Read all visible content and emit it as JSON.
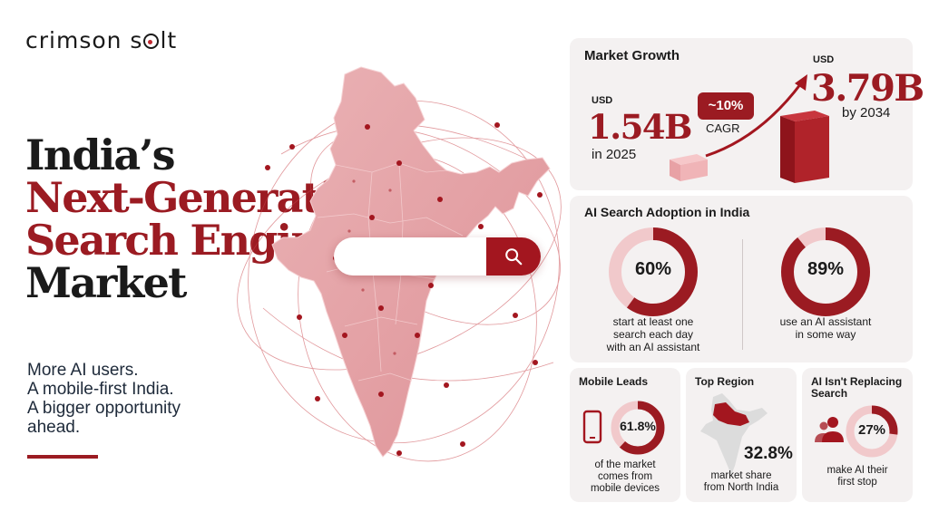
{
  "brand": {
    "logo_part1": "crimson s",
    "logo_part2": "lt"
  },
  "headline": {
    "line1": "India’s",
    "line2": "Next-Generation",
    "line3": "Search Engine",
    "line4": "Market"
  },
  "tagline": [
    "More AI users.",
    "A mobile-first India.",
    "A bigger opportunity",
    "ahead."
  ],
  "colors": {
    "crimson": "#9b1b22",
    "pink_map": "#e7a6aa",
    "panel_bg": "#f4f1f1"
  },
  "search_bar": {
    "icon": "search-icon"
  },
  "market_growth": {
    "title": "Market Growth",
    "start": {
      "currency": "USD",
      "value": "1.54B",
      "year_label": "in 2025"
    },
    "end": {
      "currency": "USD",
      "value": "3.79B",
      "year_label": "by 2034"
    },
    "cagr_value": "~10%",
    "cagr_label": "CAGR"
  },
  "adoption": {
    "title": "AI Search Adoption in India",
    "stats": [
      {
        "value": "60%",
        "fraction": 0.6,
        "caption": [
          "start at least one",
          "search each day",
          "with an AI assistant"
        ]
      },
      {
        "value": "89%",
        "fraction": 0.89,
        "caption": [
          "use an AI assistant",
          "in some way"
        ]
      }
    ]
  },
  "mobile": {
    "title": "Mobile Leads",
    "value": "61.8%",
    "fraction": 0.618,
    "caption": [
      "of the market",
      "comes from",
      "mobile devices"
    ],
    "icon": "phone-icon"
  },
  "region": {
    "title": "Top Region",
    "value": "32.8%",
    "caption": [
      "market share",
      "from North India"
    ],
    "icon": "india-map-icon"
  },
  "not_replacing": {
    "title": [
      "AI Isn't Replacing",
      "Search"
    ],
    "value": "27%",
    "fraction": 0.27,
    "caption": [
      "make AI their",
      "first stop"
    ],
    "icon": "users-icon"
  }
}
